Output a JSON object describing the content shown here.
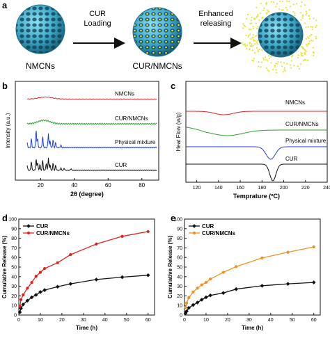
{
  "panel_a": {
    "letter": "a",
    "arrow1_label_line1": "CUR",
    "arrow1_label_line2": "Loading",
    "arrow2_label_line1": "Enhanced",
    "arrow2_label_line2": "releasing",
    "label_nmcns": "NMCNs",
    "label_cur_nmcns": "CUR/NMCNs"
  },
  "colors": {
    "sphere": "#3fa9c9",
    "sphere_dark": "#1c6f8d",
    "drug": "#e8e23a",
    "red": "#e02020",
    "green": "#2ca02c",
    "blue": "#1f3fe0",
    "black": "#111111",
    "orange": "#f0901e"
  },
  "chart_data": [
    {
      "panel": "b",
      "type": "line",
      "xlabel": "2θ (degree)",
      "ylabel": "Intensity (a.u.)",
      "xlim": [
        5,
        90
      ],
      "xticks": [
        20,
        40,
        60,
        80
      ],
      "yticks_shown": false,
      "series": [
        {
          "name": "NMCNs",
          "color": "#e02020",
          "baseline": 0.82
        },
        {
          "name": "CUR/NMCNs",
          "color": "#2ca02c",
          "baseline": 0.57
        },
        {
          "name": "Physical mixture",
          "color": "#1f3fe0",
          "baseline": 0.33
        },
        {
          "name": "CUR",
          "color": "#111111",
          "baseline": 0.1
        }
      ],
      "tick_labels": [
        "20",
        "40",
        "60",
        "80"
      ]
    },
    {
      "panel": "c",
      "type": "line",
      "xlabel": "Temprature (ºC)",
      "ylabel": "Heat Flow (w/g)",
      "xlim": [
        110,
        240
      ],
      "xticks": [
        120,
        140,
        160,
        180,
        200,
        220,
        240
      ],
      "tick_labels": [
        "120",
        "140",
        "160",
        "180",
        "200",
        "220",
        "240"
      ],
      "series": [
        {
          "name": "NMCNs",
          "color": "#e02020"
        },
        {
          "name": "CUR/NMCNs",
          "color": "#2ca02c"
        },
        {
          "name": "Physical mixture",
          "color": "#1f3fe0"
        },
        {
          "name": "CUR",
          "color": "#111111"
        }
      ]
    },
    {
      "panel": "d",
      "type": "line",
      "xlabel": "Time (h)",
      "ylabel": "Cumulative Release (%)",
      "xlim": [
        0,
        63
      ],
      "ylim": [
        0,
        100
      ],
      "xticks": [
        0,
        10,
        20,
        30,
        40,
        50,
        60
      ],
      "yticks": [
        0,
        10,
        20,
        30,
        40,
        50,
        60,
        70,
        80,
        90,
        100
      ],
      "x": [
        0.5,
        1,
        2,
        4,
        6,
        8,
        10,
        12,
        18,
        24,
        36,
        48,
        60
      ],
      "series": [
        {
          "name": "CUR",
          "color": "#111111",
          "values": [
            3,
            7,
            11,
            15,
            18.5,
            21,
            24,
            26,
            29.5,
            32.5,
            37,
            39.5,
            41.5
          ]
        },
        {
          "name": "CUR/NMCNs",
          "color": "#e02020",
          "values": [
            9,
            16,
            21,
            28,
            34,
            40.5,
            44.5,
            48.5,
            54.5,
            63,
            74,
            82,
            87
          ]
        }
      ],
      "legend": "top-left"
    },
    {
      "panel": "e",
      "type": "line",
      "xlabel": "Time (h)",
      "ylabel": "Cumulative Release (%)",
      "xlim": [
        0,
        63
      ],
      "ylim": [
        0,
        100
      ],
      "xticks": [
        0,
        10,
        20,
        30,
        40,
        50,
        60
      ],
      "yticks": [
        0,
        10,
        20,
        30,
        40,
        50,
        60,
        70,
        80,
        90,
        100
      ],
      "x": [
        0.5,
        1,
        2,
        4,
        6,
        8,
        10,
        12,
        18,
        24,
        36,
        48,
        60
      ],
      "series": [
        {
          "name": "CUR",
          "color": "#111111",
          "values": [
            2,
            4,
            7.5,
            10.5,
            13,
            16,
            18.5,
            20.5,
            23,
            27,
            30.5,
            32.5,
            34
          ]
        },
        {
          "name": "CUR/NMCNs",
          "color": "#f0901e",
          "values": [
            8,
            12.5,
            18,
            24,
            28,
            31.5,
            34,
            37.5,
            44.5,
            50.5,
            59.5,
            65.5,
            71
          ]
        }
      ],
      "legend": "top-left"
    }
  ]
}
